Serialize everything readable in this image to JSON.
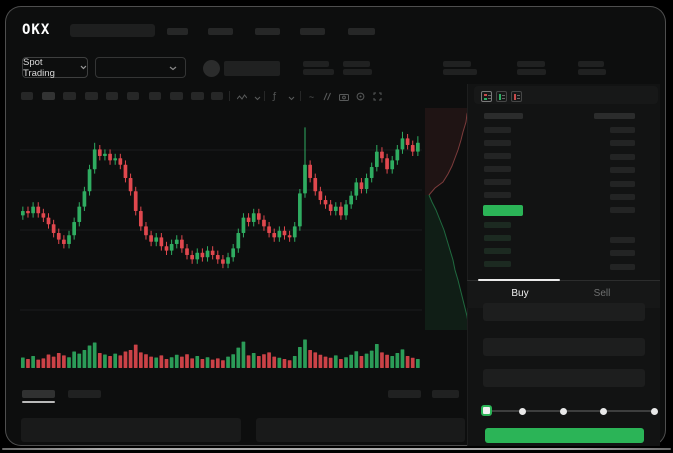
{
  "app": {
    "logo_text": "OKX"
  },
  "subheader": {
    "market_type_label": "Spot Trading"
  },
  "order_panel": {
    "buy_tab_label": "Buy",
    "sell_tab_label": "Sell",
    "slider_percent": 0
  },
  "order_book": {
    "upper_left_rows": 6,
    "lower_left_rows": 4,
    "upper_right_rows": 7,
    "lower_right_rows": 3,
    "last_price_direction": "up"
  },
  "icons": {
    "chevron-down": "v-chevron shape",
    "wave": "zigzag line",
    "indicator-fx": "ƒ",
    "compare-tilde": "~",
    "draw-slashes": "double slash",
    "camera": "rect+lens",
    "settings-ring": "circle+dot",
    "fullscreen": "corner brackets",
    "orderbook-combined": "red+green bars",
    "orderbook-bids": "green bar",
    "orderbook-asks": "red bar"
  },
  "colors": {
    "background": "#0d0e0e",
    "panel": "#1d1e1e",
    "accent_green": "#2bb457",
    "candle_up": "#2fac61",
    "candle_down": "#e0484e",
    "depth_ask": "#c94b4b",
    "depth_bid": "#2eae64"
  },
  "chart_data": {
    "type": "candlestick",
    "title": "",
    "xlabel": "",
    "ylabel": "",
    "price_scale": [
      0,
      100
    ],
    "grid": true,
    "candles": [
      [
        53,
        57,
        51,
        55
      ],
      [
        55,
        57,
        52,
        54
      ],
      [
        54,
        59,
        52,
        57
      ],
      [
        57,
        59,
        52,
        54
      ],
      [
        54,
        56,
        50,
        52
      ],
      [
        52,
        54,
        47,
        49
      ],
      [
        49,
        51,
        43,
        45
      ],
      [
        45,
        47,
        40,
        42
      ],
      [
        42,
        44,
        38,
        40
      ],
      [
        40,
        46,
        38,
        44
      ],
      [
        44,
        52,
        42,
        50
      ],
      [
        50,
        59,
        48,
        57
      ],
      [
        57,
        66,
        55,
        64
      ],
      [
        64,
        76,
        62,
        74
      ],
      [
        74,
        86,
        72,
        83
      ],
      [
        83,
        85,
        78,
        80
      ],
      [
        80,
        83,
        78,
        81
      ],
      [
        81,
        83,
        76,
        78
      ],
      [
        78,
        81,
        76,
        79
      ],
      [
        79,
        81,
        74,
        76
      ],
      [
        76,
        78,
        68,
        70
      ],
      [
        70,
        72,
        62,
        64
      ],
      [
        64,
        66,
        53,
        55
      ],
      [
        55,
        57,
        46,
        48
      ],
      [
        48,
        50,
        42,
        44
      ],
      [
        44,
        46,
        39,
        41
      ],
      [
        41,
        45,
        39,
        43
      ],
      [
        43,
        45,
        37,
        39
      ],
      [
        39,
        41,
        35,
        37
      ],
      [
        37,
        42,
        35,
        40
      ],
      [
        40,
        44,
        38,
        42
      ],
      [
        42,
        44,
        36,
        38
      ],
      [
        38,
        40,
        33,
        35
      ],
      [
        35,
        37,
        31,
        33
      ],
      [
        33,
        38,
        31,
        36
      ],
      [
        36,
        38,
        32,
        34
      ],
      [
        34,
        39,
        32,
        37
      ],
      [
        37,
        39,
        33,
        35
      ],
      [
        35,
        37,
        31,
        33
      ],
      [
        33,
        35,
        29,
        31
      ],
      [
        31,
        36,
        29,
        34
      ],
      [
        34,
        40,
        32,
        38
      ],
      [
        38,
        47,
        36,
        45
      ],
      [
        45,
        54,
        43,
        52
      ],
      [
        52,
        54,
        48,
        50
      ],
      [
        50,
        56,
        48,
        54
      ],
      [
        54,
        56,
        49,
        51
      ],
      [
        51,
        53,
        46,
        48
      ],
      [
        48,
        50,
        43,
        45
      ],
      [
        45,
        47,
        41,
        43
      ],
      [
        43,
        48,
        41,
        46
      ],
      [
        46,
        48,
        42,
        44
      ],
      [
        44,
        46,
        41,
        43
      ],
      [
        43,
        50,
        41,
        48
      ],
      [
        48,
        65,
        46,
        63
      ],
      [
        63,
        93,
        61,
        76
      ],
      [
        76,
        78,
        68,
        70
      ],
      [
        70,
        72,
        62,
        64
      ],
      [
        64,
        66,
        58,
        60
      ],
      [
        60,
        62,
        56,
        58
      ],
      [
        58,
        60,
        53,
        55
      ],
      [
        55,
        59,
        53,
        57
      ],
      [
        57,
        59,
        51,
        53
      ],
      [
        53,
        60,
        51,
        58
      ],
      [
        58,
        64,
        56,
        62
      ],
      [
        62,
        70,
        60,
        68
      ],
      [
        68,
        70,
        63,
        65
      ],
      [
        65,
        72,
        63,
        70
      ],
      [
        70,
        77,
        68,
        75
      ],
      [
        75,
        85,
        73,
        82
      ],
      [
        82,
        84,
        77,
        79
      ],
      [
        79,
        81,
        72,
        74
      ],
      [
        74,
        80,
        72,
        78
      ],
      [
        78,
        85,
        76,
        83
      ],
      [
        83,
        91,
        81,
        88
      ],
      [
        88,
        90,
        83,
        85
      ],
      [
        85,
        87,
        80,
        82
      ],
      [
        82,
        89,
        80,
        86
      ]
    ],
    "volumes": [
      35,
      30,
      40,
      28,
      32,
      45,
      38,
      50,
      42,
      36,
      55,
      48,
      60,
      75,
      85,
      50,
      45,
      40,
      48,
      42,
      55,
      60,
      78,
      52,
      46,
      38,
      35,
      42,
      30,
      36,
      44,
      38,
      46,
      32,
      40,
      30,
      36,
      28,
      32,
      26,
      38,
      46,
      68,
      88,
      42,
      50,
      40,
      46,
      52,
      38,
      34,
      30,
      26,
      40,
      70,
      95,
      60,
      52,
      44,
      38,
      34,
      42,
      30,
      36,
      44,
      56,
      40,
      48,
      58,
      80,
      52,
      44,
      40,
      50,
      62,
      40,
      34,
      30
    ],
    "depth": {
      "asks": [
        [
          44,
          0
        ],
        [
          42,
          6
        ],
        [
          41,
          14
        ],
        [
          38,
          24
        ],
        [
          36,
          32
        ],
        [
          33,
          42
        ],
        [
          30,
          50
        ],
        [
          27,
          58
        ],
        [
          23,
          66
        ],
        [
          18,
          74
        ],
        [
          10,
          80
        ],
        [
          4,
          87
        ]
      ],
      "bids": [
        [
          4,
          87
        ],
        [
          7,
          94
        ],
        [
          11,
          102
        ],
        [
          15,
          112
        ],
        [
          19,
          122
        ],
        [
          22,
          132
        ],
        [
          25,
          142
        ],
        [
          28,
          152
        ],
        [
          30,
          162
        ],
        [
          33,
          172
        ],
        [
          36,
          184
        ],
        [
          39,
          196
        ],
        [
          42,
          208
        ],
        [
          44,
          222
        ]
      ]
    }
  }
}
